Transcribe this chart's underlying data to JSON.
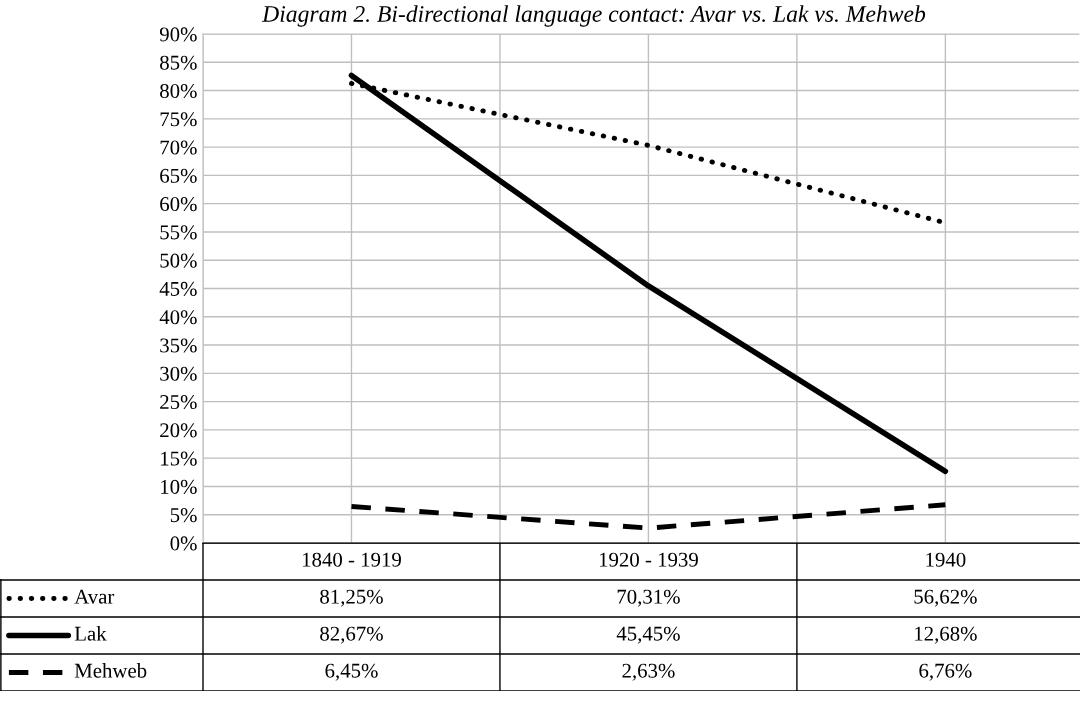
{
  "chart_data": {
    "type": "line",
    "title": "Diagram 2. Bi-directional language contact: Avar vs. Lak vs. Mehweb",
    "categories": [
      "1840 - 1919",
      "1920 - 1939",
      "1940"
    ],
    "series": [
      {
        "name": "Avar",
        "color": "#000000",
        "line_style": "dotted",
        "values": [
          81.25,
          70.31,
          56.62
        ],
        "value_labels": [
          "81,25%",
          "70,31%",
          "56,62%"
        ]
      },
      {
        "name": "Lak",
        "color": "#000000",
        "line_style": "solid",
        "values": [
          82.67,
          45.45,
          12.68
        ],
        "value_labels": [
          "82,67%",
          "45,45%",
          "12,68%"
        ]
      },
      {
        "name": "Mehweb",
        "color": "#000000",
        "line_style": "dashed",
        "values": [
          6.45,
          2.63,
          6.76
        ],
        "value_labels": [
          "6,45%",
          "2,63%",
          "6,76%"
        ]
      }
    ],
    "ylim": [
      0,
      90
    ],
    "yticks": [
      {
        "value": 0,
        "label": "0%"
      },
      {
        "value": 5,
        "label": "5%"
      },
      {
        "value": 10,
        "label": "10%"
      },
      {
        "value": 15,
        "label": "15%"
      },
      {
        "value": 20,
        "label": "20%"
      },
      {
        "value": 25,
        "label": "25%"
      },
      {
        "value": 30,
        "label": "30%"
      },
      {
        "value": 35,
        "label": "35%"
      },
      {
        "value": 40,
        "label": "40%"
      },
      {
        "value": 45,
        "label": "45%"
      },
      {
        "value": 50,
        "label": "50%"
      },
      {
        "value": 55,
        "label": "55%"
      },
      {
        "value": 60,
        "label": "60%"
      },
      {
        "value": 65,
        "label": "65%"
      },
      {
        "value": 70,
        "label": "70%"
      },
      {
        "value": 75,
        "label": "75%"
      },
      {
        "value": 80,
        "label": "80%"
      },
      {
        "value": 85,
        "label": "85%"
      },
      {
        "value": 90,
        "label": "90%"
      }
    ],
    "grid": true,
    "marker": "none",
    "legend": "bottom"
  }
}
